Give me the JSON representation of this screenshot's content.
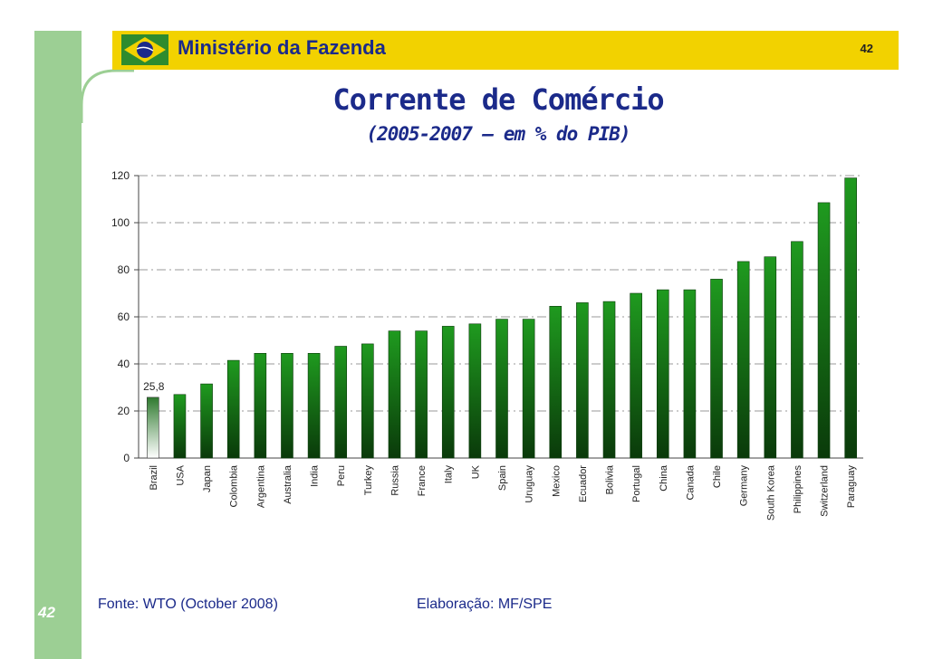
{
  "header": {
    "ministry": "Ministério da Fazenda",
    "page_number": "42"
  },
  "title": "Corrente de Comércio",
  "subtitle": "(2005-2007 – em % do PIB)",
  "footer": {
    "page_number": "42",
    "source": "Fonte: WTO (October 2008)",
    "elaboration": "Elaboração: MF/SPE"
  },
  "colors": {
    "header_bar": "#f2d200",
    "left_bar": "#9ccf94",
    "bar_top": "#1f9a1f",
    "bar_bottom": "#0a3a0a",
    "highlight_top": "#2f7a2f",
    "highlight_bottom": "#ffffff",
    "text_blue": "#1b2a8a"
  },
  "chart_data": {
    "type": "bar",
    "title": "Corrente de Comércio",
    "subtitle": "(2005-2007 – em % do PIB)",
    "xlabel": "",
    "ylabel": "",
    "ylim": [
      0,
      120
    ],
    "yticks": [
      0,
      20,
      40,
      60,
      80,
      100,
      120
    ],
    "grid": true,
    "categories": [
      "Brazil",
      "USA",
      "Japan",
      "Colombia",
      "Argentina",
      "Australia",
      "India",
      "Peru",
      "Turkey",
      "Russia",
      "France",
      "Italy",
      "UK",
      "Spain",
      "Uruguay",
      "Mexico",
      "Ecuador",
      "Bolivia",
      "Portugal",
      "China",
      "Canada",
      "Chile",
      "Germany",
      "South Korea",
      "Philippines",
      "Switzerland",
      "Paraguay"
    ],
    "values": [
      25.8,
      27,
      31.5,
      41.5,
      44.5,
      44.5,
      44.5,
      47.5,
      48.5,
      54,
      54,
      56,
      57,
      59,
      59,
      64.5,
      66,
      66.5,
      70,
      71.5,
      71.5,
      76,
      83.5,
      85.5,
      92,
      108.5,
      119
    ],
    "highlight": "Brazil",
    "data_labels": [
      {
        "category": "Brazil",
        "text": "25,8"
      }
    ]
  }
}
